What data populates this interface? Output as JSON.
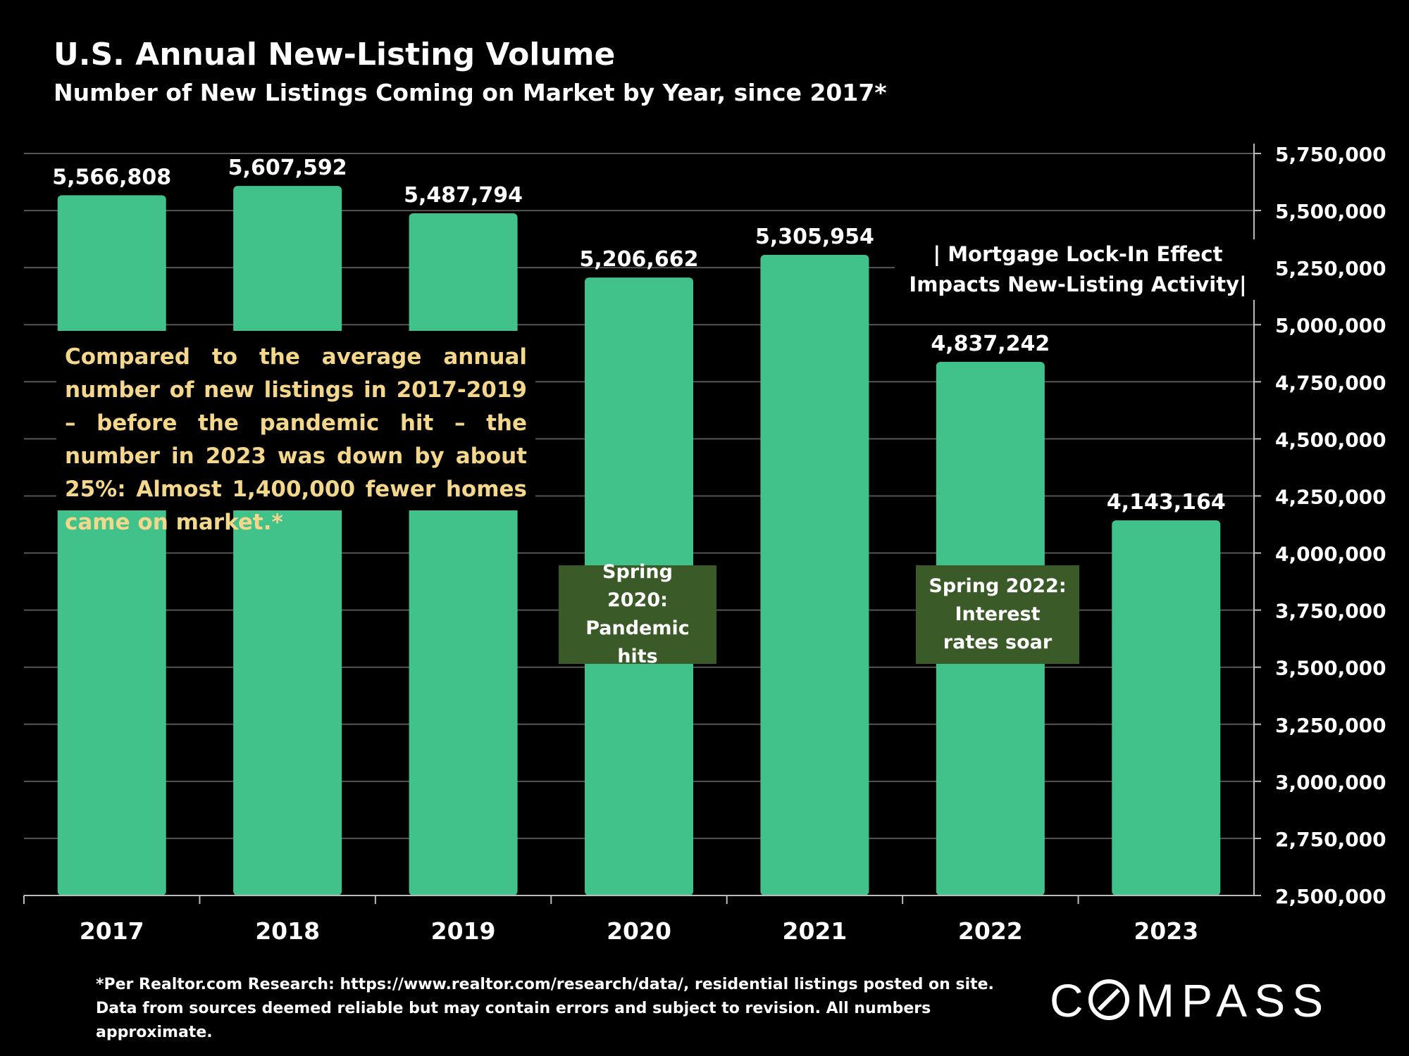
{
  "header": {
    "title": "U.S. Annual New-Listing Volume",
    "subtitle": "Number of New Listings Coming on Market by Year, since 2017*"
  },
  "colors": {
    "bar": "#40c28a",
    "annotation_bg": "#3a5a27",
    "callout_text": "#f4d78b"
  },
  "chart_data": {
    "type": "bar",
    "categories": [
      "2017",
      "2018",
      "2019",
      "2020",
      "2021",
      "2022",
      "2023"
    ],
    "values": [
      5566808,
      5607592,
      5487794,
      5206662,
      5305954,
      4837242,
      4143164
    ],
    "value_labels": [
      "5,566,808",
      "5,607,592",
      "5,487,794",
      "5,206,662",
      "5,305,954",
      "4,837,242",
      "4,143,164"
    ],
    "ylim": [
      2500000,
      5750000
    ],
    "yticks": [
      "2,500,000",
      "2,750,000",
      "3,000,000",
      "3,250,000",
      "3,500,000",
      "3,750,000",
      "4,000,000",
      "4,250,000",
      "4,500,000",
      "4,750,000",
      "5,000,000",
      "5,250,000",
      "5,500,000",
      "5,750,000"
    ],
    "ytick_values": [
      2500000,
      2750000,
      3000000,
      3250000,
      3500000,
      3750000,
      4000000,
      4250000,
      4500000,
      4750000,
      5000000,
      5250000,
      5500000,
      5750000
    ],
    "y_axis_side": "right",
    "grid": true,
    "xlabel": "",
    "ylabel": ""
  },
  "annotations": {
    "spring2020": "Spring 2020: Pandemic hits",
    "spring2022": "Spring 2022: Interest rates soar",
    "lockin": "| Mortgage Lock-In Effect\nImpacts New-Listing Activity|",
    "callout": "Compared to the average annual number of new listings in 2017-2019 – before the pandemic hit – the number in 2023 was down by about 25%: Almost 1,400,000 fewer homes came on market.*"
  },
  "footnote": "*Per Realtor.com Research:  https://www.realtor.com/research/data/, residential listings posted on site. Data from sources deemed reliable but may contain errors and subject to revision. All numbers approximate.",
  "brand": {
    "logo_text": "COMPASS"
  }
}
